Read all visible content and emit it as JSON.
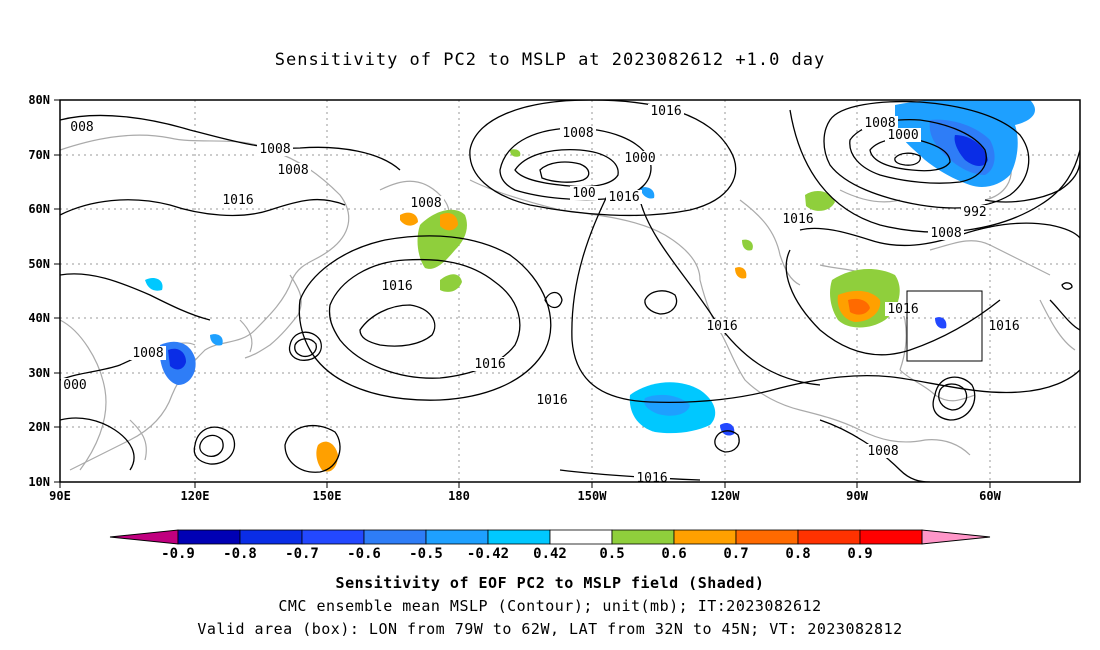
{
  "title": "Sensitivity of PC2 to MSLP at 2023082612 +1.0 day",
  "map": {
    "lon_ticks": [
      "90E",
      "120E",
      "150E",
      "180",
      "150W",
      "120W",
      "90W",
      "60W"
    ],
    "lat_ticks": [
      "80N",
      "70N",
      "60N",
      "50N",
      "40N",
      "30N",
      "20N",
      "10N"
    ],
    "contour_labels": [
      "008",
      "1008",
      "1008",
      "1016",
      "1008",
      "1016",
      "1016",
      "1016",
      "1016",
      "1008",
      "000",
      "1008",
      "1016",
      "1000",
      "100",
      "1016",
      "1016",
      "1008",
      "1000",
      "992",
      "1008",
      "1016",
      "1016",
      "1016",
      "1008",
      "1016"
    ],
    "box_label": "Valid area box"
  },
  "colorbar": {
    "labels": [
      "-0.9",
      "-0.8",
      "-0.7",
      "-0.6",
      "-0.5",
      "-0.42",
      "0.42",
      "0.5",
      "0.6",
      "0.7",
      "0.8",
      "0.9"
    ],
    "colors": [
      "#c0007f",
      "#0000b4",
      "#0a2de6",
      "#2348ff",
      "#2e7df7",
      "#1ea0ff",
      "#00c8ff",
      "#ffffff",
      "#8fcf3c",
      "#ffa000",
      "#ff6a00",
      "#ff3200",
      "#ff0000",
      "#ff96c8"
    ]
  },
  "captions": {
    "line1": "Sensitivity of EOF PC2 to MSLP field (Shaded)",
    "line2": "CMC ensemble mean MSLP (Contour); unit(mb); IT:2023082612",
    "line3": "Valid area (box): LON from 79W to 62W, LAT from 32N to 45N; VT: 2023082812"
  }
}
